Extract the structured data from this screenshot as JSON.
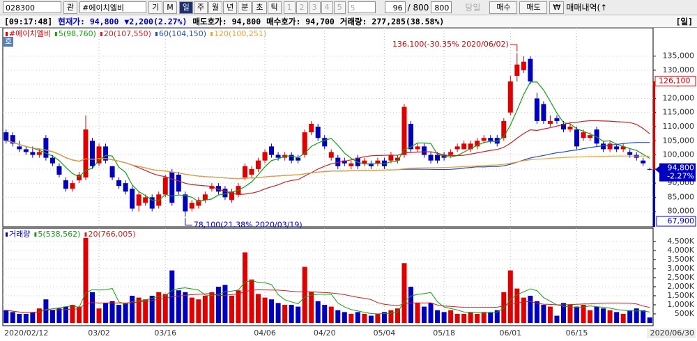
{
  "toolbar": {
    "code": "028300",
    "search": "관",
    "name": "#에이치엘비",
    "buttons": [
      "기",
      "M"
    ],
    "periods": [
      "일",
      "주",
      "월",
      "년",
      "분",
      "초",
      "틱"
    ],
    "numbers": [
      "1",
      "2",
      "3",
      "4",
      "5"
    ],
    "select": "5",
    "count": "96",
    "total": "/ 800",
    "count2": "800",
    "today": "당일",
    "buy": "매수",
    "sell": "매도",
    "currency": "₩",
    "history": "매매내역(↑"
  },
  "info_bar": {
    "time": "[09:17:48]",
    "price": "현재가: 94,800",
    "change": "▼2,200",
    "change_pct": "(2.27%)",
    "ask": "매도호가: 94,800",
    "bid": "매수호가: 94,700",
    "volume": "거래량: 277,285",
    "volume_pct": "(38.58%)",
    "period": "[일]"
  },
  "chart_data": [
    {
      "type": "candlestick",
      "name": "#에이치엘비",
      "badge": "호",
      "up_color": "#e00000",
      "down_color": "#0000c0",
      "grid": true,
      "categories": [
        "2020/02/12",
        null,
        null,
        null,
        null,
        null,
        null,
        null,
        null,
        null,
        null,
        null,
        null,
        null,
        "03/02",
        null,
        null,
        null,
        null,
        null,
        null,
        null,
        null,
        null,
        "03/16",
        null,
        null,
        null,
        null,
        null,
        null,
        null,
        null,
        null,
        null,
        null,
        null,
        null,
        null,
        "04/06",
        null,
        null,
        null,
        null,
        null,
        null,
        null,
        null,
        "04/20",
        null,
        null,
        null,
        null,
        null,
        null,
        null,
        null,
        "05/04",
        null,
        null,
        null,
        null,
        null,
        null,
        null,
        null,
        "05/18",
        null,
        null,
        null,
        null,
        null,
        null,
        null,
        null,
        null,
        "06/01",
        null,
        null,
        null,
        null,
        null,
        null,
        null,
        null,
        null,
        "06/15",
        null,
        null,
        null,
        null,
        null,
        null,
        null,
        null,
        null,
        null,
        "2020/06/30"
      ],
      "open": [
        108000,
        107000,
        103000,
        102000,
        101000,
        100000,
        106000,
        99000,
        96000,
        91000,
        88000,
        91000,
        92000,
        105000,
        97000,
        103000,
        96000,
        91000,
        90000,
        88000,
        82000,
        83000,
        85000,
        82000,
        86000,
        94000,
        93000,
        86000,
        81000,
        82000,
        84000,
        88000,
        89000,
        88000,
        84000,
        86000,
        92000,
        93000,
        95000,
        98000,
        103000,
        100000,
        99000,
        100000,
        99000,
        100000,
        108000,
        110000,
        106000,
        99000,
        99000,
        98000,
        96000,
        99000,
        97000,
        97000,
        97000,
        98000,
        98000,
        98000,
        100000,
        111000,
        102000,
        103000,
        100000,
        100000,
        100000,
        100000,
        102000,
        102000,
        102000,
        103000,
        105000,
        106000,
        106000,
        106000,
        115000,
        128000,
        130000,
        134000,
        120000,
        118000,
        111000,
        113000,
        111000,
        109000,
        109000,
        106000,
        106000,
        109000,
        104000,
        102000,
        103000,
        102000,
        101000,
        100000,
        98000,
        95000
      ],
      "high": [
        109000,
        108000,
        105000,
        103000,
        103000,
        102000,
        107000,
        100000,
        97000,
        92000,
        91000,
        94000,
        114000,
        106000,
        104000,
        104000,
        96000,
        92000,
        91000,
        89000,
        87000,
        86000,
        86000,
        87000,
        93000,
        95000,
        94000,
        87000,
        84000,
        85000,
        87000,
        90000,
        90000,
        89000,
        88000,
        90000,
        97000,
        96000,
        99000,
        102000,
        104000,
        101000,
        101000,
        101000,
        100000,
        109000,
        112000,
        111000,
        107000,
        102000,
        100000,
        99000,
        98000,
        100000,
        99000,
        98000,
        99000,
        99000,
        101000,
        100000,
        118000,
        112000,
        104000,
        104000,
        101000,
        101000,
        101000,
        102000,
        104000,
        105000,
        105000,
        106000,
        107000,
        107000,
        107000,
        113000,
        128000,
        136100,
        135000,
        135000,
        122000,
        119000,
        114000,
        114000,
        112000,
        111000,
        110000,
        109000,
        108000,
        110000,
        105000,
        105000,
        104000,
        104000,
        102000,
        101000,
        99000,
        95500
      ],
      "low": [
        104000,
        103000,
        101000,
        100000,
        99000,
        99000,
        98000,
        96000,
        92000,
        87000,
        87000,
        90000,
        91000,
        95000,
        96000,
        97000,
        91000,
        88000,
        86000,
        80000,
        80000,
        82000,
        80000,
        81000,
        85000,
        82000,
        86000,
        78100,
        80000,
        81000,
        83000,
        87000,
        86000,
        84000,
        83000,
        85000,
        91000,
        92000,
        94000,
        97000,
        99000,
        98000,
        98000,
        97000,
        97000,
        99000,
        107000,
        105000,
        102000,
        98000,
        95000,
        96000,
        95000,
        95000,
        96000,
        95000,
        96000,
        95000,
        97000,
        97000,
        99000,
        101000,
        101000,
        99000,
        97000,
        97000,
        98000,
        99000,
        101000,
        102000,
        101000,
        102000,
        104000,
        104000,
        103000,
        105000,
        114000,
        126000,
        129000,
        125000,
        111000,
        111000,
        110000,
        111000,
        108000,
        108000,
        102000,
        105000,
        105000,
        103000,
        101000,
        101000,
        101000,
        101000,
        99000,
        98000,
        96000,
        94500
      ],
      "close": [
        105000,
        104000,
        102000,
        101000,
        100000,
        101000,
        99000,
        97000,
        93000,
        88000,
        90000,
        93000,
        109000,
        96000,
        103000,
        98000,
        92000,
        89000,
        87000,
        81000,
        86000,
        85000,
        81000,
        86000,
        92000,
        83000,
        87000,
        80000,
        83000,
        84000,
        86000,
        89000,
        87000,
        85000,
        87000,
        89000,
        96000,
        95000,
        98000,
        101000,
        100000,
        99000,
        100000,
        98000,
        98000,
        108000,
        111000,
        106000,
        103000,
        101000,
        96000,
        97000,
        97000,
        96000,
        98000,
        96000,
        98000,
        96000,
        100000,
        99000,
        117000,
        102000,
        103000,
        100000,
        98000,
        98000,
        99000,
        101000,
        103000,
        104000,
        104000,
        105000,
        106000,
        105000,
        104000,
        112000,
        126000,
        132000,
        133000,
        126000,
        112000,
        112000,
        112000,
        112000,
        109000,
        110000,
        103000,
        108000,
        107000,
        104000,
        102000,
        104000,
        102000,
        103000,
        100000,
        99000,
        97000,
        94800
      ],
      "ylim": [
        75000,
        145000
      ],
      "yticks": [
        {
          "value": 80000,
          "label": "80,000"
        },
        {
          "value": 85000,
          "label": "85,000"
        },
        {
          "value": 90000,
          "label": "90,000"
        },
        {
          "value": 95000,
          "label": "95,000"
        },
        {
          "value": 100000,
          "label": "100,000"
        },
        {
          "value": 105000,
          "label": "105,000"
        },
        {
          "value": 110000,
          "label": "110,000"
        },
        {
          "value": 115000,
          "label": "115,000"
        },
        {
          "value": 120000,
          "label": "120,000"
        },
        {
          "value": 125000,
          "label": "125,000"
        },
        {
          "value": 130000,
          "label": "130,000"
        },
        {
          "value": 135000,
          "label": "135,000"
        }
      ],
      "moving_averages": [
        {
          "label": "5(98,760)",
          "period": 5,
          "color": "#10a010"
        },
        {
          "label": "20(107,550)",
          "period": 20,
          "color": "#d02020"
        },
        {
          "label": "60(104,150)",
          "period": 60,
          "color": "#2050c0"
        },
        {
          "label": "120(100,251)",
          "period": 120,
          "color": "#f0a030"
        }
      ],
      "annotations": [
        {
          "index": 77,
          "value": 136100,
          "label": "136,100(-30.35% 2020/06/02)"
        },
        {
          "index": 27,
          "value": 78100,
          "label": "78,100(21.38% 2020/03/19)"
        }
      ],
      "price_markers": [
        {
          "value": 126100,
          "label": "126,100",
          "color": "#e00000"
        },
        {
          "value": 94800,
          "label": "94,800",
          "sub": "-2.27%",
          "color": "#0000c0"
        },
        {
          "value": 67900,
          "label": "67,900",
          "color": "#0000c0"
        }
      ]
    },
    {
      "type": "bar",
      "name": "거래량",
      "up_color": "#e00000",
      "down_color": "#0000c0",
      "grid": true,
      "values": [
        700,
        600,
        500,
        500,
        600,
        800,
        1300,
        700,
        800,
        900,
        1000,
        900,
        4700,
        1700,
        800,
        1100,
        1200,
        1000,
        1100,
        1500,
        1400,
        1300,
        1500,
        1700,
        1600,
        2900,
        1800,
        1700,
        1400,
        1300,
        1500,
        1700,
        2000,
        2100,
        1500,
        1800,
        3900,
        2400,
        1600,
        1400,
        1300,
        1100,
        1000,
        1000,
        900,
        3100,
        1700,
        1200,
        1000,
        900,
        700,
        600,
        500,
        600,
        500,
        400,
        500,
        600,
        700,
        800,
        3300,
        2000,
        1100,
        900,
        1100,
        700,
        600,
        700,
        500,
        500,
        600,
        500,
        600,
        600,
        700,
        1700,
        2900,
        1900,
        1400,
        1500,
        1200,
        1000,
        900,
        400,
        1100,
        1000,
        900,
        1000,
        700,
        900,
        800,
        700,
        600,
        500,
        700,
        800,
        700,
        300
      ],
      "ylim": [
        0,
        5000
      ],
      "yticks": [
        {
          "value": 500,
          "label": "500K"
        },
        {
          "value": 1000,
          "label": "1,000K"
        },
        {
          "value": 1500,
          "label": "1,500K"
        },
        {
          "value": 2000,
          "label": "2,000K"
        },
        {
          "value": 2500,
          "label": "2,500K"
        },
        {
          "value": 3000,
          "label": "3,000K"
        },
        {
          "value": 3500,
          "label": "3,500K"
        },
        {
          "value": 4000,
          "label": "4,000K"
        },
        {
          "value": 4500,
          "label": "4,500K"
        }
      ],
      "moving_averages": [
        {
          "label": "5(538,562)",
          "period": 5,
          "color": "#10a010"
        },
        {
          "label": "20(766,005)",
          "period": 20,
          "color": "#d02020"
        }
      ]
    }
  ]
}
